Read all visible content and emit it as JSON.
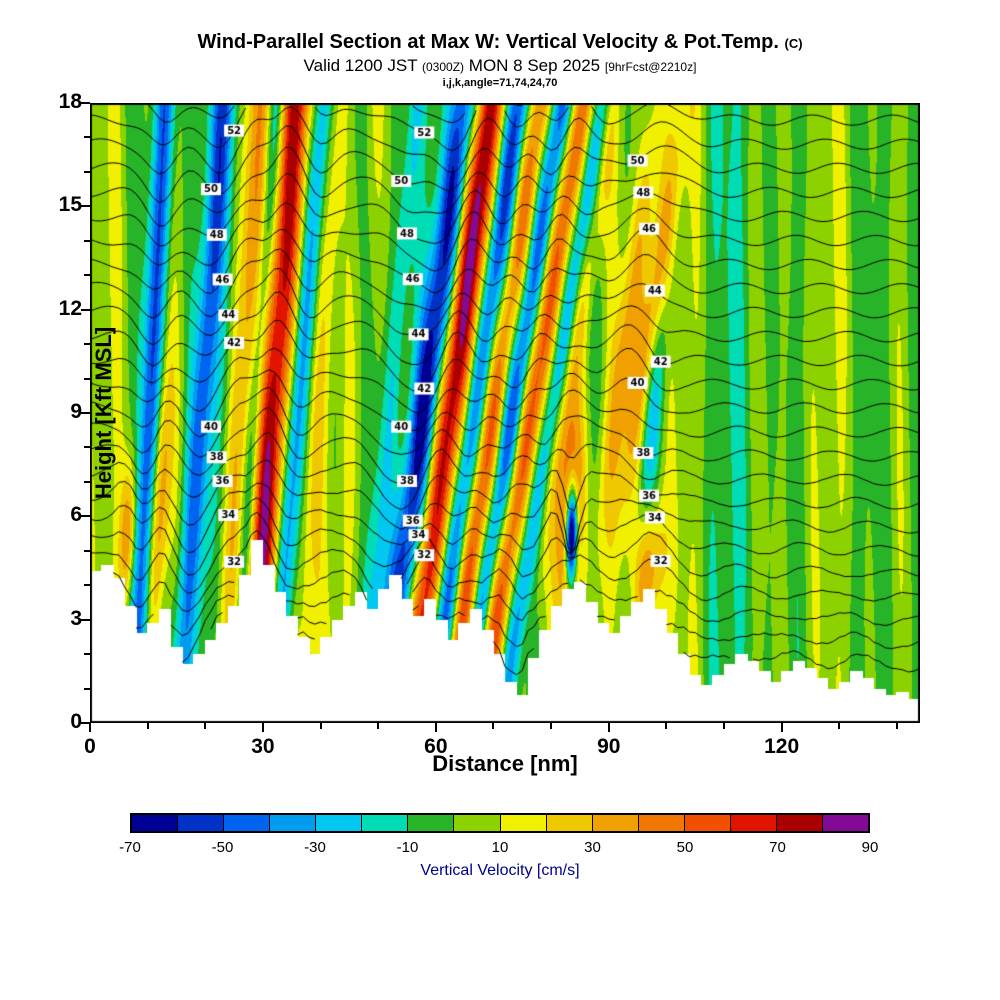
{
  "header": {
    "title_main": "Wind-Parallel Section at Max W: Vertical Velocity & Pot.Temp.",
    "title_unit": "(C)",
    "valid_main_1": "Valid 1200 JST",
    "valid_small_1": "(0300Z)",
    "valid_main_2": "MON 8 Sep 2025",
    "valid_small_2": "[9hrFcst@2210z]",
    "params_line": "i,j,k,angle=71,74,24,70"
  },
  "chart_data": {
    "type": "heatmap",
    "subtype": "filled-contour-vertical-cross-section",
    "title": "Wind-Parallel Section at Max W: Vertical Velocity & Pot.Temp. (C)",
    "x_axis": {
      "label": "Distance [nm]",
      "range": [
        0,
        144
      ],
      "major_ticks": [
        0,
        30,
        60,
        90,
        120
      ],
      "minor_tick_step": 10
    },
    "y_axis": {
      "label": "Height [Kft MSL]",
      "range": [
        0,
        18
      ],
      "major_ticks": [
        0,
        3,
        6,
        9,
        12,
        15,
        18
      ],
      "minor_tick_step": 1
    },
    "colorbar": {
      "label": "Vertical Velocity [cm/s]",
      "label_color": "#00008B",
      "level_min": -70,
      "level_max": 90,
      "level_step": 10,
      "tick_labels": [
        -70,
        -50,
        -30,
        -10,
        10,
        30,
        50,
        70,
        90
      ],
      "colors": [
        "#000096",
        "#0032C8",
        "#0064F0",
        "#009CF0",
        "#00C8F0",
        "#00DCB4",
        "#28B428",
        "#8CD200",
        "#F0F000",
        "#F0C800",
        "#F0A000",
        "#F07800",
        "#F05000",
        "#E11400",
        "#AA0000",
        "#820A96"
      ]
    },
    "theta_contours": {
      "unit": "C",
      "labeled_values": [
        32,
        34,
        36,
        38,
        40,
        42,
        44,
        46,
        48,
        50,
        52
      ],
      "value_min": 29,
      "value_max": 53,
      "interval": 1,
      "base_height_at_32": 3.5,
      "height_per_unit": 0.7,
      "label_columns_nm": [
        23,
        56,
        97
      ]
    },
    "terrain_kft": {
      "x_step_nm": 2,
      "heights": [
        4.4,
        4.6,
        4.2,
        3.4,
        2.6,
        2.9,
        3.3,
        2.2,
        1.7,
        2.0,
        2.4,
        2.9,
        3.4,
        4.3,
        5.3,
        4.6,
        3.8,
        3.1,
        2.5,
        2.0,
        2.5,
        3.0,
        3.4,
        3.8,
        3.3,
        3.9,
        4.3,
        3.6,
        3.1,
        3.6,
        3.0,
        2.4,
        2.9,
        3.3,
        2.7,
        2.0,
        1.2,
        0.8,
        1.9,
        2.7,
        3.4,
        3.9,
        4.1,
        3.5,
        2.9,
        2.6,
        3.1,
        3.5,
        3.9,
        3.3,
        2.6,
        2.0,
        1.4,
        1.1,
        1.4,
        1.7,
        2.0,
        1.8,
        1.5,
        1.2,
        1.5,
        1.8,
        1.6,
        1.3,
        1.0,
        1.2,
        1.5,
        1.3,
        1.0,
        0.8,
        0.9,
        0.7,
        0.8
      ]
    },
    "vertical_velocity_field": {
      "units": "cm/s",
      "background_waves": [
        {
          "a": 6,
          "k": 0.5,
          "ph": 0,
          "kz": 0
        },
        {
          "a": 5,
          "k": 1.25,
          "ph": 2,
          "kz": 0
        },
        {
          "a": 5,
          "k": 0.2,
          "ph": 1,
          "kz": 0
        },
        {
          "a": 3,
          "k": 0.8,
          "ph": 0,
          "kz": 0.3
        },
        {
          "a": 2,
          "k": 0.35,
          "ph": 3,
          "kz": 0
        }
      ],
      "wave_packets": [
        {
          "x": 6.0,
          "amp": 40,
          "wx": 1.0,
          "tilt": 0.2,
          "zc": 5.5,
          "zh": 1.5
        },
        {
          "x": 8.5,
          "amp": -48,
          "wx": 1.2,
          "tilt": 0.3
        },
        {
          "x": 11.0,
          "amp": 45,
          "wx": 1.2,
          "tilt": 0.3,
          "zc": 6,
          "zh": 3
        },
        {
          "x": 16.5,
          "amp": -42,
          "wx": 1.4,
          "tilt": 0.45
        },
        {
          "x": 23.5,
          "amp": 30,
          "wx": 1.6,
          "tilt": 0.4
        },
        {
          "x": 26.2,
          "amp": -28,
          "wx": 1.0,
          "tilt": 0.4
        },
        {
          "x": 29.0,
          "amp": 72,
          "wx": 1.8,
          "tilt": 0.45
        },
        {
          "x": 33.0,
          "amp": -38,
          "wx": 1.3,
          "tilt": 0.5
        },
        {
          "x": 37.0,
          "amp": 16,
          "wx": 1.5,
          "tilt": 0.4
        },
        {
          "x": 44.0,
          "amp": 14,
          "wx": 2.0,
          "tilt": 0.3
        },
        {
          "x": 49.0,
          "amp": -20,
          "wx": 1.2,
          "tilt": 0.5
        },
        {
          "x": 53.0,
          "amp": -62,
          "wx": 1.8,
          "tilt": 0.8
        },
        {
          "x": 57.5,
          "amp": 75,
          "wx": 1.8,
          "tilt": 0.8
        },
        {
          "x": 61.5,
          "amp": -52,
          "wx": 1.4,
          "tilt": 0.85
        },
        {
          "x": 64.5,
          "amp": 48,
          "wx": 1.4,
          "tilt": 0.9
        },
        {
          "x": 67.5,
          "amp": -45,
          "wx": 1.3,
          "tilt": 0.95
        },
        {
          "x": 70.5,
          "amp": 55,
          "wx": 1.5,
          "tilt": 1.0
        },
        {
          "x": 74.0,
          "amp": -30,
          "wx": 1.2,
          "tilt": 1.0
        },
        {
          "x": 77.0,
          "amp": 25,
          "wx": 1.3,
          "tilt": 0.9,
          "zc": 12,
          "zh": 5
        },
        {
          "x": 82.5,
          "amp": 70,
          "wx": 1.6,
          "tilt": 0.2,
          "zc": 6,
          "zh": 2.5
        },
        {
          "x": 83.2,
          "amp": -130,
          "wx": 0.7,
          "tilt": 0.1,
          "zc": 5.5,
          "zh": 1.0
        },
        {
          "x": 86.5,
          "amp": 30,
          "wx": 1.5,
          "tilt": 0.8,
          "zc": 12,
          "zh": 5
        },
        {
          "x": 89.5,
          "amp": 40,
          "wx": 1.6,
          "tilt": 0.9,
          "zc": 12,
          "zh": 4
        },
        {
          "x": 94.0,
          "amp": -25,
          "wx": 1.2,
          "tilt": 0.6,
          "zc": 9,
          "zh": 4
        },
        {
          "x": 96.5,
          "amp": 45,
          "wx": 2.0,
          "tilt": 0.2,
          "zc": 4.5,
          "zh": 1.5
        }
      ]
    }
  }
}
